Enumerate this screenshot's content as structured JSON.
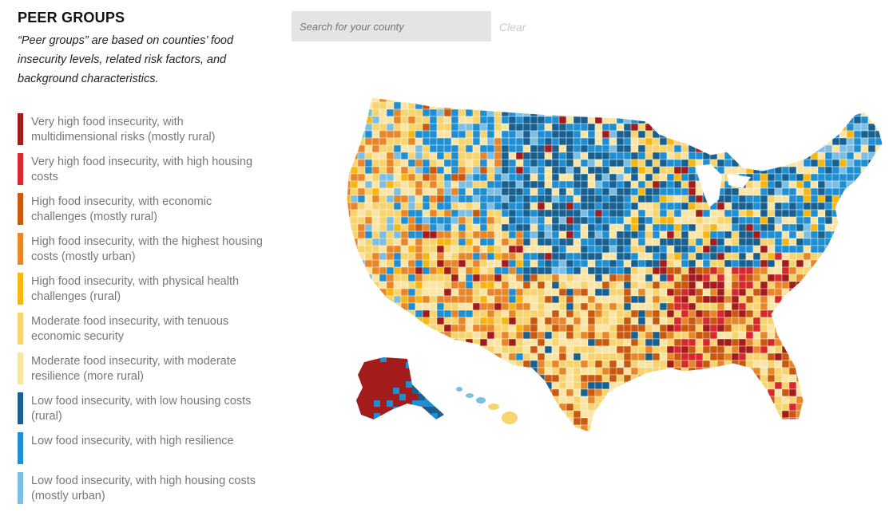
{
  "sidebar": {
    "title": "PEER GROUPS",
    "subtitle": "“Peer groups” are based on counties’ food insecurity levels, related risk factors, and background characteristics."
  },
  "legend": {
    "items": [
      {
        "label": "Very high food insecurity, with multidimensional risks (mostly rural)",
        "color": "#a31b1b"
      },
      {
        "label": "Very high food insecurity, with high housing costs",
        "color": "#d7282e"
      },
      {
        "label": "High food insecurity, with economic challenges (mostly rural)",
        "color": "#c8590f"
      },
      {
        "label": "High food insecurity, with the highest housing costs (mostly urban)",
        "color": "#e8872a"
      },
      {
        "label": "High food insecurity, with physical health challenges (rural)",
        "color": "#f6b713"
      },
      {
        "label": "Moderate food insecurity, with tenuous economic security",
        "color": "#f8d46e"
      },
      {
        "label": "Moderate food insecurity, with moderate resilience (more rural)",
        "color": "#fbe5a6"
      },
      {
        "label": "Low food insecurity, with low housing costs (rural)",
        "color": "#17608f"
      },
      {
        "label": "Low food insecurity, with high resilience",
        "color": "#1f8fd2"
      },
      {
        "label": "Low food insecurity, with high housing costs (mostly urban)",
        "color": "#7cbfe3"
      }
    ]
  },
  "search": {
    "placeholder": "Search for your county",
    "value": ""
  },
  "clear_label": "Clear"
}
